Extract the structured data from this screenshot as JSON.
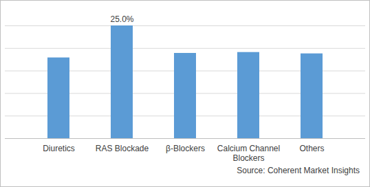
{
  "chart_data": {
    "type": "bar",
    "caption": "Source: Coherent Market Insights",
    "categories": [
      "Diuretics",
      "RAS Blockade",
      "β-Blockers",
      "Calcium Channel Blockers",
      "Others"
    ],
    "values": [
      17.9,
      25.0,
      18.9,
      19.1,
      18.8
    ],
    "value_labels": [
      null,
      "25.0%",
      null,
      null,
      null
    ],
    "data_labels": true,
    "color": "#5b9bd5",
    "ylim": [
      0,
      25
    ],
    "yticks": [
      0,
      5,
      10,
      15,
      20,
      25
    ],
    "grid": true,
    "tick_labels": "x"
  }
}
